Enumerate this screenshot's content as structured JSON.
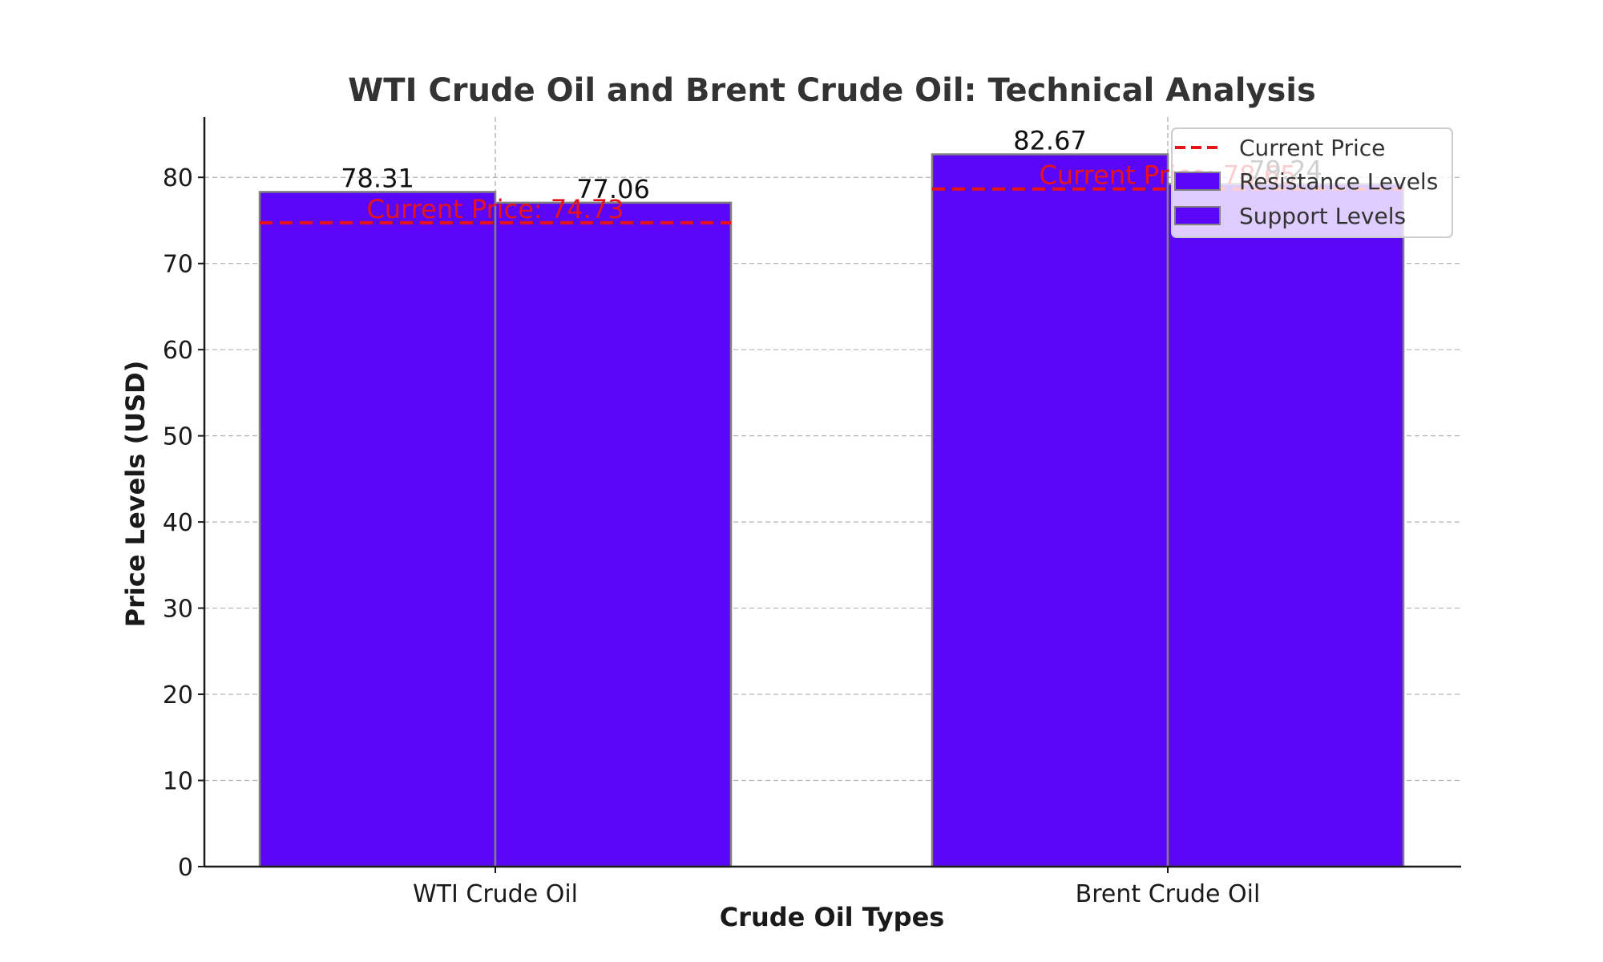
{
  "chart_data": {
    "type": "bar",
    "title": "WTI Crude Oil and Brent Crude Oil: Technical Analysis",
    "xlabel": "Crude Oil Types",
    "ylabel": "Price Levels (USD)",
    "categories": [
      "WTI Crude Oil",
      "Brent Crude Oil"
    ],
    "series": [
      {
        "name": "Resistance Levels",
        "values": [
          78.31,
          82.67
        ],
        "labels": [
          "78.31",
          "82.67"
        ],
        "color": "#5b07f7"
      },
      {
        "name": "Support Levels",
        "values": [
          77.06,
          79.24
        ],
        "labels": [
          "77.06",
          "79.24"
        ],
        "color": "#5b07f7"
      }
    ],
    "current_price": {
      "name": "Current Price",
      "values": [
        74.73,
        78.65
      ],
      "labels": [
        "Current Price: 74.73",
        "Current Price: 78.65"
      ],
      "color": "#e8131a"
    },
    "ylim": [
      0,
      87
    ],
    "yticks": [
      0,
      10,
      20,
      30,
      40,
      50,
      60,
      70,
      80
    ],
    "grid": true,
    "legend_position": "top-right",
    "bar_edge_color": "#808080"
  }
}
